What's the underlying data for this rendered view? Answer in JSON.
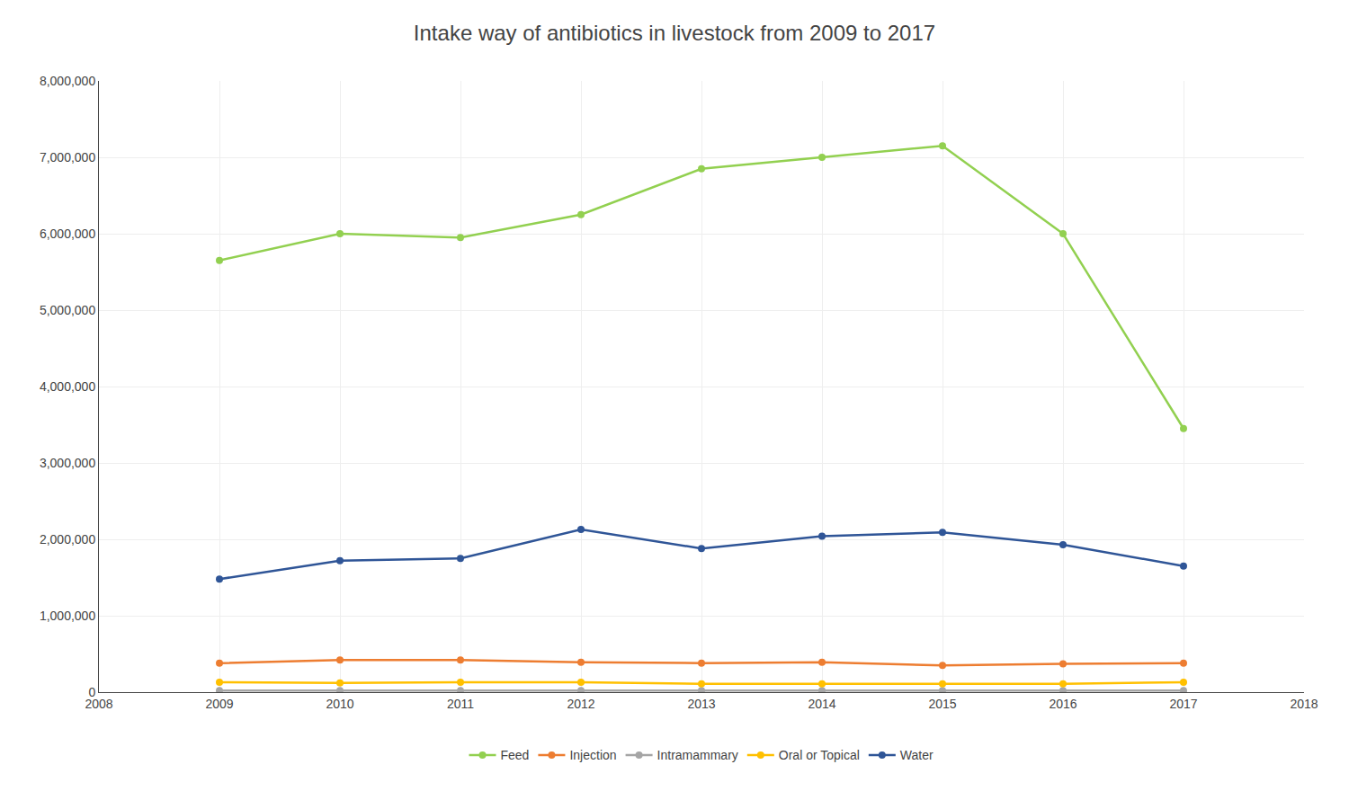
{
  "chart_data": {
    "type": "line",
    "title": "Intake way of antibiotics in livestock from 2009 to 2017",
    "x": [
      2009,
      2010,
      2011,
      2012,
      2013,
      2014,
      2015,
      2016,
      2017
    ],
    "series": [
      {
        "name": "Feed",
        "color": "#92d050",
        "marker": "circle",
        "values": [
          5650000,
          6000000,
          5950000,
          6250000,
          6850000,
          7000000,
          7150000,
          6000000,
          3450000
        ]
      },
      {
        "name": "Injection",
        "color": "#ed7d31",
        "marker": "circle",
        "values": [
          380000,
          420000,
          420000,
          390000,
          380000,
          390000,
          350000,
          370000,
          380000
        ]
      },
      {
        "name": "Intramammary",
        "color": "#a5a5a5",
        "marker": "circle",
        "values": [
          20000,
          20000,
          20000,
          20000,
          20000,
          20000,
          20000,
          20000,
          20000
        ]
      },
      {
        "name": "Oral or Topical",
        "color": "#ffc000",
        "marker": "circle",
        "values": [
          130000,
          120000,
          130000,
          130000,
          110000,
          110000,
          110000,
          110000,
          130000
        ]
      },
      {
        "name": "Water",
        "color": "#2f5597",
        "marker": "circle",
        "values": [
          1480000,
          1720000,
          1750000,
          2130000,
          1880000,
          2040000,
          2090000,
          1930000,
          1650000
        ]
      }
    ],
    "xlim": [
      2008,
      2018
    ],
    "xticks": [
      2008,
      2009,
      2010,
      2011,
      2012,
      2013,
      2014,
      2015,
      2016,
      2017,
      2018
    ],
    "ylim": [
      0,
      8000000
    ],
    "yticks": [
      0,
      {
        "value": 1000000,
        "label": "1,000,000"
      },
      {
        "value": 2000000,
        "label": "2,000,000"
      },
      {
        "value": 3000000,
        "label": "3,000,000"
      },
      {
        "value": 4000000,
        "label": "4,000,000"
      },
      {
        "value": 5000000,
        "label": "5,000,000"
      },
      {
        "value": 6000000,
        "label": "6,000,000"
      },
      {
        "value": 7000000,
        "label": "7,000,000"
      },
      {
        "value": 8000000,
        "label": "8,000,000"
      }
    ],
    "grid": true,
    "legend": "bottom"
  }
}
